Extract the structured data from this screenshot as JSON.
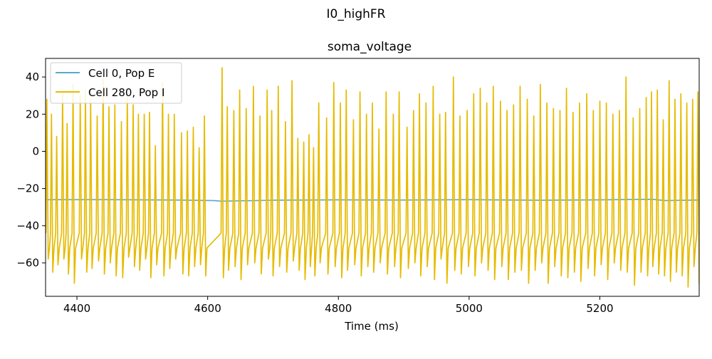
{
  "suptitle": "I0_highFR",
  "chart_data": {
    "type": "line",
    "title": "soma_voltage",
    "xlabel": "Time (ms)",
    "ylabel": "",
    "xlim": [
      4352,
      5352
    ],
    "ylim": [
      -78,
      50
    ],
    "xticks": [
      4400,
      4600,
      4800,
      5000,
      5200
    ],
    "yticks": [
      -60,
      -40,
      -20,
      0,
      20,
      40
    ],
    "grid": false,
    "legend_position": "upper-left",
    "series": [
      {
        "name": "Cell 0, Pop E",
        "color": "#5ba8cc",
        "x": [
          4352,
          4450,
          4550,
          4610,
          4620,
          4700,
          4800,
          4900,
          5000,
          5100,
          5200,
          5280,
          5300,
          5352
        ],
        "y": [
          -26,
          -26,
          -26.2,
          -26.5,
          -26.8,
          -26.3,
          -26.1,
          -26.2,
          -26,
          -26.3,
          -26.1,
          -25.8,
          -26.5,
          -26.2
        ]
      },
      {
        "name": "Cell 280, Pop I",
        "color": "#e6bb00",
        "spike_times": [
          4354,
          4361,
          4369,
          4378,
          4385,
          4394,
          4405,
          4413,
          4421,
          4431,
          4440,
          4449,
          4458,
          4468,
          4477,
          4486,
          4494,
          4503,
          4511,
          4520,
          4531,
          4540,
          4549,
          4560,
          4569,
          4578,
          4587,
          4595,
          4622,
          4630,
          4640,
          4649,
          4659,
          4670,
          4680,
          4691,
          4698,
          4708,
          4719,
          4729,
          4738,
          4747,
          4755,
          4762,
          4770,
          4782,
          4793,
          4803,
          4812,
          4823,
          4833,
          4843,
          4852,
          4862,
          4873,
          4884,
          4893,
          4905,
          4915,
          4924,
          4934,
          4945,
          4955,
          4964,
          4976,
          4986,
          4997,
          5007,
          5017,
          5027,
          5037,
          5048,
          5058,
          5068,
          5078,
          5089,
          5099,
          5109,
          5119,
          5129,
          5139,
          5149,
          5159,
          5169,
          5180,
          5190,
          5200,
          5210,
          5220,
          5230,
          5240,
          5251,
          5261,
          5271,
          5279,
          5288,
          5297,
          5306,
          5315,
          5324,
          5333,
          5342,
          5350
        ],
        "peaks": [
          28,
          20,
          8,
          32,
          15,
          36,
          30,
          33,
          28,
          19,
          40,
          24,
          25,
          16,
          31,
          25,
          20,
          20,
          21,
          3,
          37,
          20,
          20,
          10,
          11,
          13,
          2,
          19,
          45,
          24,
          22,
          33,
          23,
          35,
          19,
          33,
          22,
          35,
          16,
          38,
          7,
          5,
          9,
          2,
          26,
          18,
          37,
          26,
          33,
          17,
          32,
          20,
          26,
          12,
          32,
          20,
          32,
          13,
          22,
          31,
          26,
          35,
          20,
          21,
          40,
          19,
          22,
          31,
          34,
          26,
          35,
          27,
          22,
          25,
          35,
          28,
          19,
          36,
          26,
          23,
          22,
          34,
          21,
          26,
          31,
          22,
          27,
          26,
          20,
          22,
          40,
          18,
          23,
          29,
          32,
          33,
          17,
          38,
          28,
          31,
          26,
          28,
          32
        ],
        "troughs": [
          -58,
          -65,
          -61,
          -58,
          -66,
          -71,
          -58,
          -65,
          -63,
          -59,
          -66,
          -60,
          -67,
          -68,
          -57,
          -62,
          -64,
          -58,
          -68,
          -61,
          -67,
          -63,
          -58,
          -66,
          -67,
          -62,
          -61,
          -67,
          -68,
          -64,
          -62,
          -69,
          -61,
          -60,
          -66,
          -58,
          -67,
          -62,
          -65,
          -59,
          -64,
          -69,
          -62,
          -67,
          -60,
          -66,
          -62,
          -68,
          -64,
          -61,
          -67,
          -62,
          -65,
          -60,
          -66,
          -62,
          -68,
          -63,
          -60,
          -67,
          -62,
          -69,
          -58,
          -71,
          -64,
          -66,
          -62,
          -67,
          -60,
          -64,
          -69,
          -62,
          -69,
          -65,
          -64,
          -71,
          -64,
          -60,
          -71,
          -62,
          -67,
          -68,
          -65,
          -70,
          -63,
          -67,
          -61,
          -69,
          -60,
          -64,
          -65,
          -72,
          -65,
          -67,
          -62,
          -66,
          -67,
          -70,
          -65,
          -67,
          -73,
          -62,
          -71
        ]
      }
    ]
  }
}
